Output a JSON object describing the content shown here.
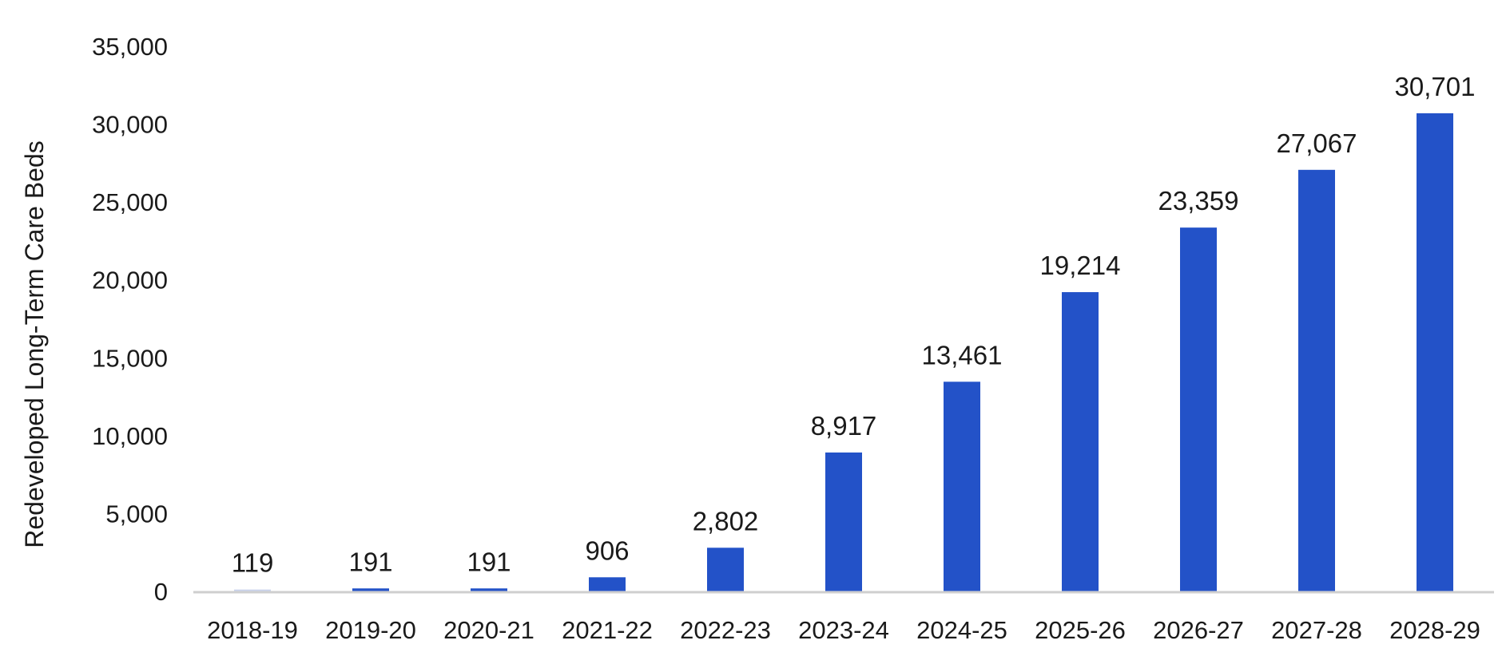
{
  "chart_data": {
    "type": "bar",
    "title": "",
    "xlabel": "",
    "ylabel": "Redeveloped Long-Term Care Beds",
    "categories": [
      "2018-19",
      "2019-20",
      "2020-21",
      "2021-22",
      "2022-23",
      "2023-24",
      "2024-25",
      "2025-26",
      "2026-27",
      "2027-28",
      "2028-29"
    ],
    "values": [
      119,
      191,
      191,
      906,
      2802,
      8917,
      13461,
      19214,
      23359,
      27067,
      30701
    ],
    "data_labels": [
      "119",
      "191",
      "191",
      "906",
      "2,802",
      "8,917",
      "13,461",
      "19,214",
      "23,359",
      "27,067",
      "30,701"
    ],
    "ylim": [
      0,
      35000
    ],
    "yticks": [
      0,
      5000,
      10000,
      15000,
      20000,
      25000,
      30000,
      35000
    ],
    "ytick_labels": [
      "0",
      "5,000",
      "10,000",
      "15,000",
      "20,000",
      "25,000",
      "30,000",
      "35,000"
    ],
    "grid": false,
    "legend": "none",
    "colors": {
      "bar": "#2352C8",
      "first_bar": "#C9D3EC",
      "axis": "#CFCFCF"
    }
  }
}
